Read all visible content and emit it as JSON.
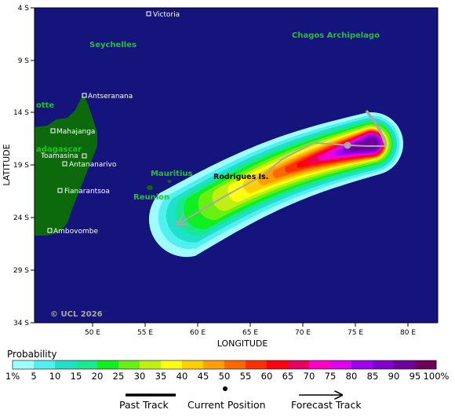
{
  "axes": {
    "xlabel": "LONGITUDE",
    "ylabel": "LATITUDE",
    "x_ticks": [
      "50 E",
      "55 E",
      "60 E",
      "65 E",
      "70 E",
      "75 E",
      "80 E"
    ],
    "y_ticks": [
      "4 S",
      "9 S",
      "14 S",
      "19 S",
      "24 S",
      "29 S",
      "34 S"
    ]
  },
  "places": {
    "victoria": "Victoria",
    "seychelles": "Seychelles",
    "chagos": "Chagos Archipelago",
    "antseranana": "Antseranana",
    "mahajanga": "Mahajanga",
    "madagascar": "adagascar",
    "toamasina": "Toamasina",
    "antananarivo": "Antananarivo",
    "fianarantsoa": "Fianarantsoa",
    "ambovombe": "Ambovombe",
    "mayotte": "otte",
    "mauritius": "Mauritius",
    "reunion": "Reunion",
    "rodrigues": "Rodrigues Is."
  },
  "copyright": "© UCL 2026",
  "legend": {
    "title": "Probability",
    "labels": [
      "1%",
      "5",
      "10",
      "15",
      "20",
      "25",
      "30",
      "35",
      "40",
      "45",
      "50",
      "55",
      "60",
      "65",
      "70",
      "75",
      "80",
      "85",
      "90",
      "95",
      "100%"
    ],
    "colors": [
      "#9ffcff",
      "#4ff0ef",
      "#1fe0c8",
      "#18e890",
      "#10f020",
      "#68f010",
      "#c0f010",
      "#ffff10",
      "#ffd000",
      "#ffa000",
      "#ff6800",
      "#ff3000",
      "#ff0010",
      "#e80060",
      "#ff00c8",
      "#e000f0",
      "#a000f0",
      "#8000d0",
      "#70009c",
      "#6c005c"
    ],
    "key": {
      "past": "Past Track",
      "current": "Current Position",
      "forecast": "Forecast Track"
    }
  },
  "colors": {
    "ocean": "#14147c",
    "land": "#0c6a0c",
    "track": "#a8a8a8"
  }
}
